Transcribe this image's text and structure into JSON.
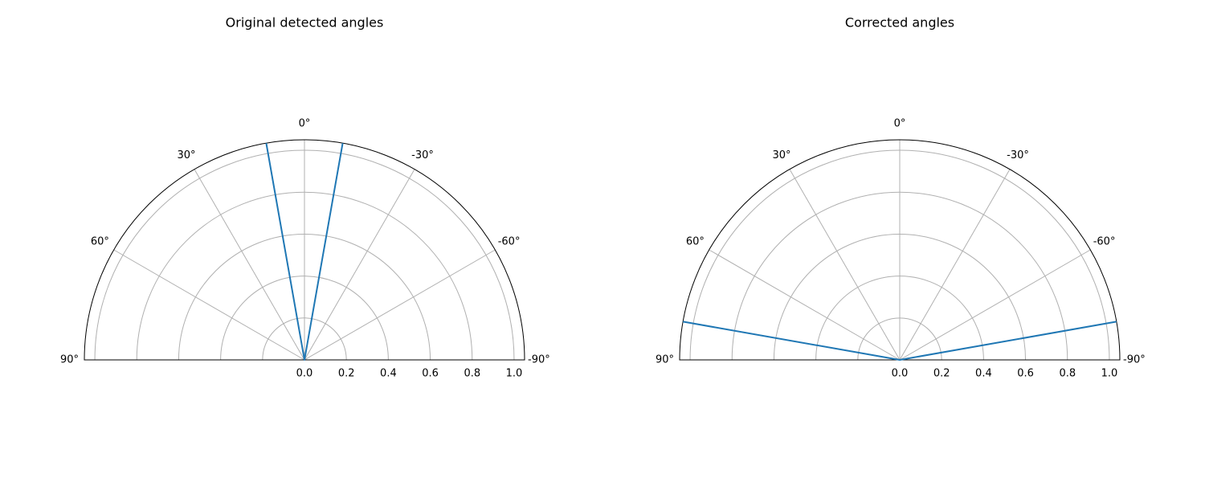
{
  "chart_data": [
    {
      "type": "polar-line",
      "title": "Original detected angles",
      "theta_range_deg": [
        -90,
        90
      ],
      "r_range": [
        0,
        1.05
      ],
      "theta_ticks": [
        "0°",
        "30°",
        "60°",
        "90°",
        "-30°",
        "-60°",
        "-90°"
      ],
      "theta_tick_values": [
        0,
        30,
        60,
        90,
        -30,
        -60,
        -90
      ],
      "r_ticks": [
        "0.0",
        "0.2",
        "0.4",
        "0.6",
        "0.8",
        "1.0"
      ],
      "r_tick_values": [
        0,
        0.2,
        0.4,
        0.6,
        0.8,
        1.0
      ],
      "grid": true,
      "series": [
        {
          "color": "#1f77b4",
          "points": [
            {
              "theta": 10,
              "r": 1.05
            },
            {
              "theta": 0,
              "r": 0
            },
            {
              "theta": -10,
              "r": 1.05
            }
          ]
        }
      ]
    },
    {
      "type": "polar-line",
      "title": "Corrected angles",
      "theta_range_deg": [
        -90,
        90
      ],
      "r_range": [
        0,
        1.05
      ],
      "theta_ticks": [
        "0°",
        "30°",
        "60°",
        "90°",
        "-30°",
        "-60°",
        "-90°"
      ],
      "theta_tick_values": [
        0,
        30,
        60,
        90,
        -30,
        -60,
        -90
      ],
      "r_ticks": [
        "0.0",
        "0.2",
        "0.4",
        "0.6",
        "0.8",
        "1.0"
      ],
      "r_tick_values": [
        0,
        0.2,
        0.4,
        0.6,
        0.8,
        1.0
      ],
      "grid": true,
      "series": [
        {
          "color": "#1f77b4",
          "points": [
            {
              "theta": 80,
              "r": 1.05
            },
            {
              "theta": 0,
              "r": 0
            },
            {
              "theta": -80,
              "r": 1.05
            }
          ]
        }
      ]
    }
  ]
}
